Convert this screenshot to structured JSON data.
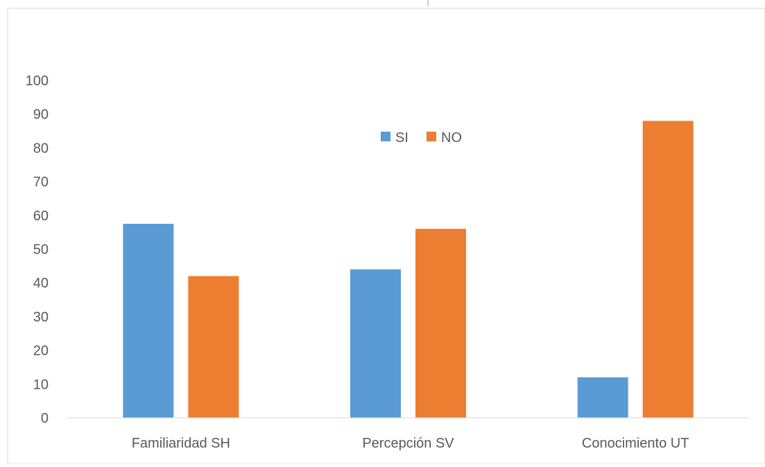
{
  "chart_data": {
    "type": "bar",
    "categories": [
      "Familiaridad SH",
      "Percepción SV",
      "Conocimiento UT"
    ],
    "series": [
      {
        "name": "SI",
        "values": [
          57.5,
          44,
          12
        ],
        "color": "#5B9BD5"
      },
      {
        "name": "NO",
        "values": [
          42,
          56,
          88
        ],
        "color": "#ED7D31"
      }
    ],
    "title": "",
    "xlabel": "",
    "ylabel": "",
    "ylim": [
      0,
      100
    ],
    "yticks": [
      0,
      10,
      20,
      30,
      40,
      50,
      60,
      70,
      80,
      90,
      100
    ],
    "grid": false,
    "legend_position": "top-center"
  }
}
